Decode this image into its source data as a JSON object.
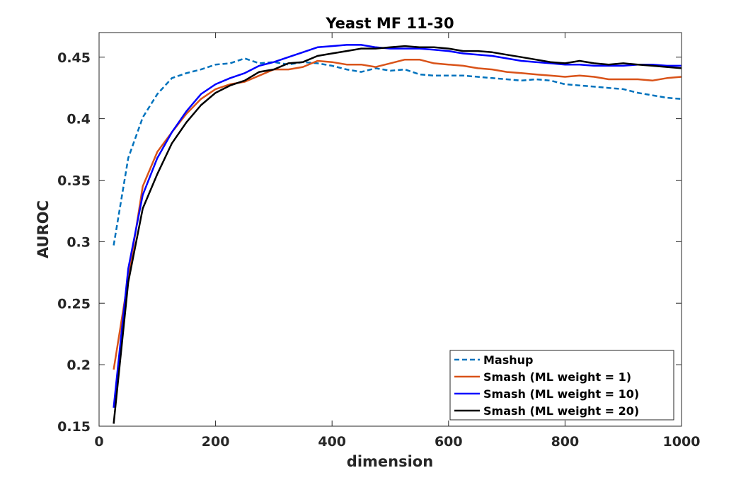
{
  "chart_data": {
    "type": "line",
    "title": "Yeast MF 11-30",
    "xlabel": "dimension",
    "ylabel": "AUROC",
    "xlim": [
      0,
      1000
    ],
    "ylim": [
      0.15,
      0.47
    ],
    "xticks": [
      0,
      200,
      400,
      600,
      800,
      1000
    ],
    "xtick_labels": [
      "0",
      "200",
      "400",
      "600",
      "800",
      "1000"
    ],
    "yticks": [
      0.15,
      0.2,
      0.25,
      0.3,
      0.35,
      0.4,
      0.45
    ],
    "ytick_labels": [
      "0.15",
      "0.2",
      "0.25",
      "0.3",
      "0.35",
      "0.4",
      "0.45"
    ],
    "grid": false,
    "legend_position": "bottom-right",
    "x": [
      25,
      50,
      75,
      100,
      125,
      150,
      175,
      200,
      225,
      250,
      275,
      300,
      325,
      350,
      375,
      400,
      425,
      450,
      475,
      500,
      525,
      550,
      575,
      600,
      625,
      650,
      675,
      700,
      725,
      750,
      775,
      800,
      825,
      850,
      875,
      900,
      925,
      950,
      975,
      1000
    ],
    "series": [
      {
        "name": "Mashup",
        "color": "#0072BD",
        "style": "dashed",
        "values": [
          0.297,
          0.368,
          0.401,
          0.42,
          0.433,
          0.437,
          0.44,
          0.444,
          0.445,
          0.449,
          0.445,
          0.446,
          0.444,
          0.446,
          0.445,
          0.443,
          0.44,
          0.438,
          0.441,
          0.439,
          0.44,
          0.436,
          0.435,
          0.435,
          0.435,
          0.434,
          0.433,
          0.432,
          0.431,
          0.432,
          0.431,
          0.428,
          0.427,
          0.426,
          0.425,
          0.424,
          0.421,
          0.419,
          0.417,
          0.416
        ]
      },
      {
        "name": "Smash (ML weight = 1)",
        "color": "#D95319",
        "style": "solid",
        "values": [
          0.196,
          0.27,
          0.345,
          0.373,
          0.389,
          0.404,
          0.416,
          0.424,
          0.428,
          0.43,
          0.435,
          0.44,
          0.44,
          0.442,
          0.447,
          0.446,
          0.444,
          0.444,
          0.442,
          0.445,
          0.448,
          0.448,
          0.445,
          0.444,
          0.443,
          0.441,
          0.44,
          0.438,
          0.437,
          0.436,
          0.435,
          0.434,
          0.435,
          0.434,
          0.432,
          0.432,
          0.432,
          0.431,
          0.433,
          0.434
        ]
      },
      {
        "name": "Smash (ML weight = 10)",
        "color": "#0000FF",
        "style": "solid",
        "values": [
          0.165,
          0.278,
          0.338,
          0.368,
          0.389,
          0.406,
          0.42,
          0.428,
          0.433,
          0.437,
          0.443,
          0.446,
          0.45,
          0.454,
          0.458,
          0.459,
          0.46,
          0.46,
          0.458,
          0.457,
          0.457,
          0.457,
          0.456,
          0.455,
          0.453,
          0.452,
          0.451,
          0.449,
          0.447,
          0.446,
          0.445,
          0.444,
          0.444,
          0.443,
          0.443,
          0.443,
          0.444,
          0.444,
          0.443,
          0.443
        ]
      },
      {
        "name": "Smash (ML weight = 20)",
        "color": "#000000",
        "style": "solid",
        "values": [
          0.152,
          0.267,
          0.327,
          0.355,
          0.38,
          0.397,
          0.411,
          0.421,
          0.427,
          0.431,
          0.438,
          0.44,
          0.445,
          0.446,
          0.451,
          0.453,
          0.455,
          0.457,
          0.457,
          0.458,
          0.459,
          0.458,
          0.458,
          0.457,
          0.455,
          0.455,
          0.454,
          0.452,
          0.45,
          0.448,
          0.446,
          0.445,
          0.447,
          0.445,
          0.444,
          0.445,
          0.444,
          0.443,
          0.442,
          0.441
        ]
      }
    ]
  }
}
